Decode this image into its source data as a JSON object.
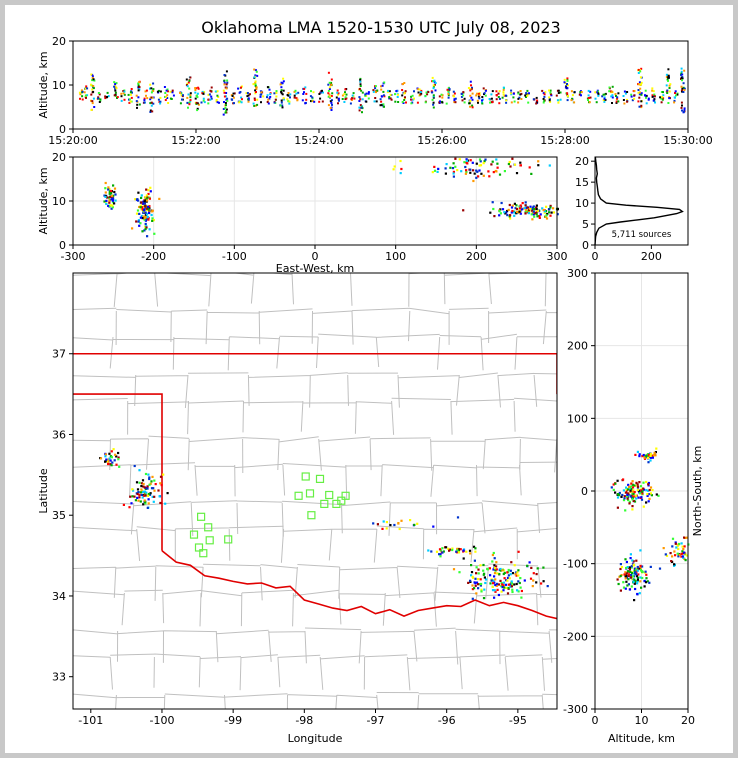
{
  "title": "Oklahoma LMA 1520-1530 UTC July 08, 2023",
  "colors": {
    "border_state": "#e00000",
    "county": "#c0c0c0",
    "station": "#66ee44"
  },
  "chart_data": [
    {
      "id": "time_height",
      "type": "scatter",
      "xlabel": "",
      "ylabel": "Altitude, km",
      "xlim": [
        "15:20:00",
        "15:30:00"
      ],
      "ylim": [
        0,
        20
      ],
      "xticks": [
        "15:20:00",
        "15:22:00",
        "15:24:00",
        "15:26:00",
        "15:28:00",
        "15:30:00"
      ],
      "yticks": [
        0,
        10,
        20
      ],
      "columns": [
        {
          "t": 0.7,
          "zmin": 6.5,
          "zmax": 9
        },
        {
          "t": 1.2,
          "zmin": 6.5,
          "zmax": 10
        },
        {
          "t": 1.8,
          "zmin": 4.5,
          "zmax": 13
        },
        {
          "t": 2.5,
          "zmin": 6,
          "zmax": 9
        },
        {
          "t": 3.2,
          "zmin": 7,
          "zmax": 9
        },
        {
          "t": 4.1,
          "zmin": 6,
          "zmax": 11
        },
        {
          "t": 4.8,
          "zmin": 6,
          "zmax": 9
        },
        {
          "t": 5.5,
          "zmin": 6,
          "zmax": 10
        },
        {
          "t": 6.3,
          "zmin": 5,
          "zmax": 11
        },
        {
          "t": 7.0,
          "zmin": 6,
          "zmax": 9
        },
        {
          "t": 7.6,
          "zmin": 4,
          "zmax": 11
        },
        {
          "t": 8.3,
          "zmin": 6,
          "zmax": 9
        },
        {
          "t": 9.0,
          "zmin": 6,
          "zmax": 10
        },
        {
          "t": 9.6,
          "zmin": 7,
          "zmax": 9
        },
        {
          "t": 10.5,
          "zmin": 6,
          "zmax": 9
        },
        {
          "t": 11.2,
          "zmin": 5,
          "zmax": 12
        },
        {
          "t": 12.0,
          "zmin": 4,
          "zmax": 10
        },
        {
          "t": 12.6,
          "zmin": 6,
          "zmax": 9
        },
        {
          "t": 13.3,
          "zmin": 6,
          "zmax": 10
        },
        {
          "t": 14.0,
          "zmin": 6,
          "zmax": 9
        },
        {
          "t": 14.8,
          "zmin": 3.5,
          "zmax": 14
        },
        {
          "t": 15.5,
          "zmin": 6,
          "zmax": 9
        },
        {
          "t": 16.2,
          "zmin": 6,
          "zmax": 10
        },
        {
          "t": 17.0,
          "zmin": 6,
          "zmax": 9
        },
        {
          "t": 17.7,
          "zmin": 5,
          "zmax": 14
        },
        {
          "t": 18.3,
          "zmin": 6,
          "zmax": 9
        },
        {
          "t": 19.0,
          "zmin": 6,
          "zmax": 10
        },
        {
          "t": 19.6,
          "zmin": 6,
          "zmax": 9
        },
        {
          "t": 20.3,
          "zmin": 5,
          "zmax": 12
        },
        {
          "t": 21.0,
          "zmin": 6,
          "zmax": 9
        },
        {
          "t": 21.7,
          "zmin": 6,
          "zmax": 9
        },
        {
          "t": 22.5,
          "zmin": 6,
          "zmax": 10
        },
        {
          "t": 23.3,
          "zmin": 6,
          "zmax": 9
        },
        {
          "t": 24.1,
          "zmin": 6,
          "zmax": 9
        },
        {
          "t": 25.0,
          "zmin": 4,
          "zmax": 13
        },
        {
          "t": 25.7,
          "zmin": 6,
          "zmax": 9
        },
        {
          "t": 26.4,
          "zmin": 6,
          "zmax": 10
        },
        {
          "t": 27.2,
          "zmin": 6,
          "zmax": 9
        },
        {
          "t": 28.0,
          "zmin": 4,
          "zmax": 12
        },
        {
          "t": 28.6,
          "zmin": 6,
          "zmax": 9
        },
        {
          "t": 29.4,
          "zmin": 6,
          "zmax": 10
        },
        {
          "t": 30.1,
          "zmin": 5,
          "zmax": 11
        },
        {
          "t": 30.8,
          "zmin": 6,
          "zmax": 9
        },
        {
          "t": 31.5,
          "zmin": 6,
          "zmax": 9
        },
        {
          "t": 32.2,
          "zmin": 6,
          "zmax": 11
        },
        {
          "t": 33.0,
          "zmin": 6,
          "zmax": 9
        },
        {
          "t": 33.7,
          "zmin": 6,
          "zmax": 10
        },
        {
          "t": 34.4,
          "zmin": 6,
          "zmax": 9
        },
        {
          "t": 35.1,
          "zmin": 5,
          "zmax": 12
        },
        {
          "t": 35.8,
          "zmin": 6,
          "zmax": 9
        },
        {
          "t": 36.5,
          "zmin": 6,
          "zmax": 10
        },
        {
          "t": 37.2,
          "zmin": 6,
          "zmax": 9
        },
        {
          "t": 38.0,
          "zmin": 6,
          "zmax": 9
        },
        {
          "t": 38.7,
          "zmin": 5,
          "zmax": 11
        },
        {
          "t": 39.4,
          "zmin": 6,
          "zmax": 9
        },
        {
          "t": 40.0,
          "zmin": 6,
          "zmax": 10
        },
        {
          "t": 40.7,
          "zmin": 6,
          "zmax": 9
        },
        {
          "t": 41.4,
          "zmin": 6,
          "zmax": 9
        },
        {
          "t": 42.0,
          "zmin": 6,
          "zmax": 10
        },
        {
          "t": 42.8,
          "zmin": 6,
          "zmax": 9
        },
        {
          "t": 43.5,
          "zmin": 6,
          "zmax": 9
        },
        {
          "t": 44.2,
          "zmin": 6,
          "zmax": 9
        },
        {
          "t": 45.0,
          "zmin": 6,
          "zmax": 9
        },
        {
          "t": 45.8,
          "zmin": 6,
          "zmax": 9
        },
        {
          "t": 46.5,
          "zmin": 6,
          "zmax": 9
        },
        {
          "t": 47.3,
          "zmin": 6,
          "zmax": 9
        },
        {
          "t": 48.0,
          "zmin": 6,
          "zmax": 12
        },
        {
          "t": 48.7,
          "zmin": 6,
          "zmax": 9
        },
        {
          "t": 49.4,
          "zmin": 7,
          "zmax": 9
        },
        {
          "t": 50.2,
          "zmin": 6,
          "zmax": 9
        },
        {
          "t": 51.0,
          "zmin": 6,
          "zmax": 9
        },
        {
          "t": 51.7,
          "zmin": 6,
          "zmax": 9
        },
        {
          "t": 52.4,
          "zmin": 6,
          "zmax": 10
        },
        {
          "t": 53.0,
          "zmin": 6,
          "zmax": 9
        },
        {
          "t": 53.8,
          "zmin": 6,
          "zmax": 9
        },
        {
          "t": 54.5,
          "zmin": 6,
          "zmax": 9
        },
        {
          "t": 55.2,
          "zmin": 4,
          "zmax": 14
        },
        {
          "t": 55.9,
          "zmin": 6,
          "zmax": 9
        },
        {
          "t": 56.6,
          "zmin": 6,
          "zmax": 10
        },
        {
          "t": 57.3,
          "zmin": 6,
          "zmax": 9
        },
        {
          "t": 58.0,
          "zmin": 6,
          "zmax": 14
        },
        {
          "t": 58.7,
          "zmin": 6,
          "zmax": 9
        },
        {
          "t": 59.4,
          "zmin": 4,
          "zmax": 14
        }
      ]
    },
    {
      "id": "ew_alt",
      "type": "scatter",
      "xlabel": "East-West, km",
      "ylabel": "Altitude, km",
      "xlim": [
        -300,
        300
      ],
      "ylim": [
        0,
        20
      ],
      "xticks": [
        -300,
        -200,
        -100,
        0,
        100,
        200,
        300
      ],
      "yticks": [
        0,
        10,
        20
      ],
      "clusters": [
        {
          "x": -255,
          "z": 11,
          "sx": 4,
          "sz": 1.5,
          "n": 50
        },
        {
          "x": -212,
          "z": 8,
          "sx": 5,
          "sz": 2.2,
          "n": 110
        },
        {
          "x": 265,
          "z": 8,
          "sx": 22,
          "sz": 0.8,
          "n": 140
        },
        {
          "x": 200,
          "z": 18,
          "sx": 40,
          "sz": 1.5,
          "n": 90
        }
      ]
    },
    {
      "id": "alt_hist",
      "type": "line",
      "xlabel": "",
      "ylabel": "",
      "xlim": [
        0,
        330
      ],
      "ylim": [
        0,
        21
      ],
      "xticks": [
        0,
        200
      ],
      "yticks": [
        0,
        5,
        10,
        15,
        20
      ],
      "annotation": "5,711 sources",
      "altitude": [
        0,
        2,
        3,
        4,
        5,
        5.5,
        6,
        6.5,
        7,
        7.5,
        8,
        8.5,
        9,
        9.5,
        10,
        11,
        12,
        13,
        14,
        15,
        16,
        17,
        18,
        19,
        20,
        21
      ],
      "count": [
        0,
        2,
        6,
        14,
        40,
        90,
        150,
        210,
        250,
        290,
        310,
        300,
        220,
        110,
        40,
        20,
        12,
        10,
        8,
        6,
        5,
        8,
        6,
        5,
        3,
        1
      ]
    },
    {
      "id": "plan",
      "type": "scatter",
      "xlabel": "Longitude",
      "ylabel": "Latitude",
      "xlim": [
        -101.25,
        -94.45
      ],
      "ylim": [
        32.6,
        38.0
      ],
      "xticks": [
        -101,
        -100,
        -99,
        -98,
        -97,
        -96,
        -95
      ],
      "yticks": [
        33,
        34,
        35,
        36,
        37
      ],
      "clusters": [
        {
          "lon": -100.75,
          "lat": 35.72,
          "slon": 0.08,
          "slat": 0.05,
          "n": 30
        },
        {
          "lon": -100.25,
          "lat": 35.28,
          "slon": 0.1,
          "slat": 0.12,
          "n": 90
        },
        {
          "lon": -95.25,
          "lat": 34.22,
          "slon": 0.25,
          "slat": 0.12,
          "n": 170
        },
        {
          "lon": -95.9,
          "lat": 34.57,
          "slon": 0.2,
          "slat": 0.03,
          "n": 40
        },
        {
          "lon": -96.6,
          "lat": 34.9,
          "slon": 0.3,
          "slat": 0.05,
          "n": 18
        }
      ],
      "stations": [
        {
          "lon": -99.45,
          "lat": 34.98
        },
        {
          "lon": -99.35,
          "lat": 34.85
        },
        {
          "lon": -99.55,
          "lat": 34.76
        },
        {
          "lon": -99.33,
          "lat": 34.69
        },
        {
          "lon": -99.48,
          "lat": 34.6
        },
        {
          "lon": -99.42,
          "lat": 34.53
        },
        {
          "lon": -99.07,
          "lat": 34.7
        },
        {
          "lon": -97.98,
          "lat": 35.48
        },
        {
          "lon": -97.78,
          "lat": 35.45
        },
        {
          "lon": -98.08,
          "lat": 35.24
        },
        {
          "lon": -97.92,
          "lat": 35.27
        },
        {
          "lon": -97.65,
          "lat": 35.25
        },
        {
          "lon": -97.72,
          "lat": 35.14
        },
        {
          "lon": -97.55,
          "lat": 35.14
        },
        {
          "lon": -97.42,
          "lat": 35.24
        },
        {
          "lon": -97.48,
          "lat": 35.18
        },
        {
          "lon": -97.9,
          "lat": 35.0
        }
      ]
    },
    {
      "id": "alt_ns",
      "type": "scatter",
      "xlabel": "Altitude, km",
      "ylabel": "North-South, km",
      "xlim": [
        0,
        20
      ],
      "ylim": [
        -300,
        300
      ],
      "xticks": [
        0,
        10,
        20
      ],
      "yticks": [
        -300,
        -200,
        -100,
        0,
        100,
        200,
        300
      ],
      "clusters": [
        {
          "z": 8,
          "y": 0,
          "sz": 2.2,
          "sy": 9,
          "n": 120
        },
        {
          "z": 8,
          "y": -115,
          "sz": 1.5,
          "sy": 12,
          "n": 120
        },
        {
          "z": 11.5,
          "y": 50,
          "sz": 1.2,
          "sy": 3,
          "n": 40
        },
        {
          "z": 18,
          "y": -80,
          "sz": 1.5,
          "sy": 10,
          "n": 50
        }
      ]
    }
  ]
}
